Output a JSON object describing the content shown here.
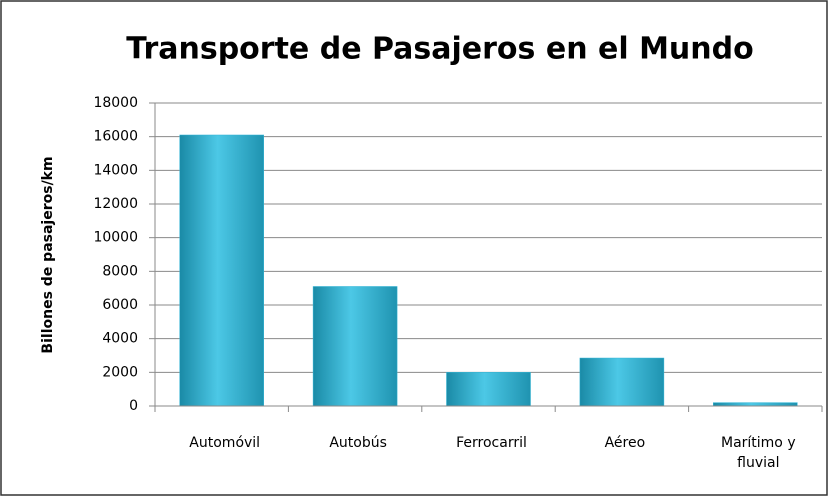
{
  "chart_data": {
    "type": "bar",
    "title": "Transporte de Pasajeros en el Mundo",
    "y_label": "Billones de pasajeros/km",
    "categories": [
      "Automóvil",
      "Autobús",
      "Ferrocarril",
      "Aéreo",
      "Marítimo y fluvial"
    ],
    "values": [
      16100,
      7100,
      2000,
      2850,
      200
    ],
    "color": "#31b5d6",
    "ylim": [
      0,
      18000
    ],
    "yticks": [
      0,
      2000,
      4000,
      6000,
      8000,
      10000,
      12000,
      14000,
      16000,
      18000
    ],
    "grid": true
  }
}
